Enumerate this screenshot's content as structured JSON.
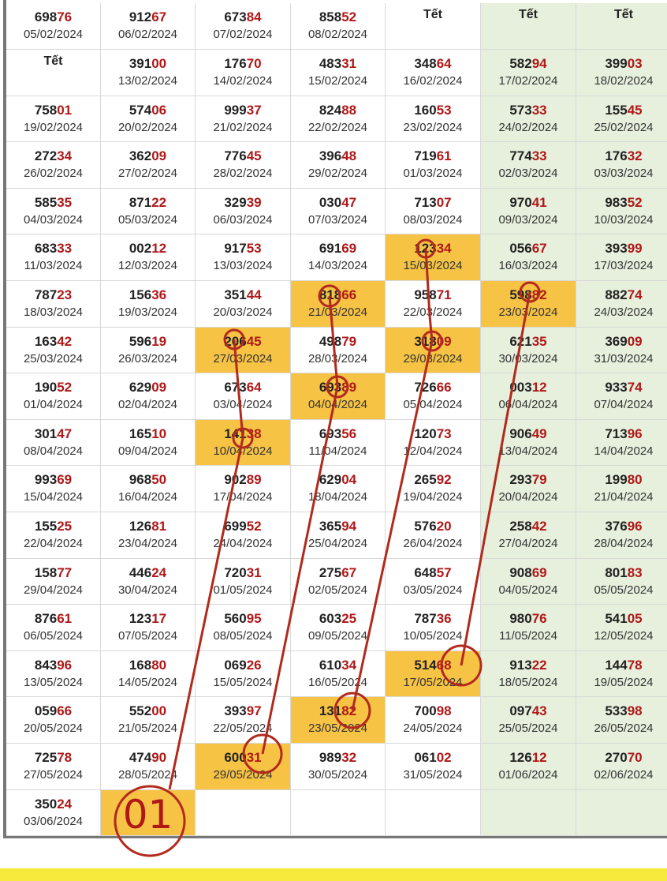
{
  "table": {
    "rows": [
      [
        {
          "number": [
            "698",
            "76"
          ],
          "date": "05/02/2024"
        },
        {
          "number": [
            "912",
            "67"
          ],
          "date": "06/02/2024"
        },
        {
          "number": [
            "673",
            "84"
          ],
          "date": "07/02/2024"
        },
        {
          "number": [
            "858",
            "52"
          ],
          "date": "08/02/2024"
        },
        {
          "holiday": "Tết"
        },
        {
          "holiday": "Tết"
        },
        {
          "holiday": "Tết"
        }
      ],
      [
        {
          "holiday": "Tết"
        },
        {
          "number": [
            "391",
            "00"
          ],
          "date": "13/02/2024"
        },
        {
          "number": [
            "176",
            "70"
          ],
          "date": "14/02/2024"
        },
        {
          "number": [
            "483",
            "31"
          ],
          "date": "15/02/2024"
        },
        {
          "number": [
            "348",
            "64"
          ],
          "date": "16/02/2024"
        },
        {
          "number": [
            "582",
            "94"
          ],
          "date": "17/02/2024"
        },
        {
          "number": [
            "399",
            "03"
          ],
          "date": "18/02/2024"
        }
      ],
      [
        {
          "number": [
            "758",
            "01"
          ],
          "date": "19/02/2024"
        },
        {
          "number": [
            "574",
            "06"
          ],
          "date": "20/02/2024"
        },
        {
          "number": [
            "999",
            "37"
          ],
          "date": "21/02/2024"
        },
        {
          "number": [
            "824",
            "88"
          ],
          "date": "22/02/2024"
        },
        {
          "number": [
            "160",
            "53"
          ],
          "date": "23/02/2024"
        },
        {
          "number": [
            "573",
            "33"
          ],
          "date": "24/02/2024"
        },
        {
          "number": [
            "155",
            "45"
          ],
          "date": "25/02/2024"
        }
      ],
      [
        {
          "number": [
            "272",
            "34"
          ],
          "date": "26/02/2024"
        },
        {
          "number": [
            "362",
            "09"
          ],
          "date": "27/02/2024"
        },
        {
          "number": [
            "776",
            "45"
          ],
          "date": "28/02/2024"
        },
        {
          "number": [
            "396",
            "48"
          ],
          "date": "29/02/2024"
        },
        {
          "number": [
            "719",
            "61"
          ],
          "date": "01/03/2024"
        },
        {
          "number": [
            "774",
            "33"
          ],
          "date": "02/03/2024"
        },
        {
          "number": [
            "176",
            "32"
          ],
          "date": "03/03/2024"
        }
      ],
      [
        {
          "number": [
            "585",
            "35"
          ],
          "date": "04/03/2024"
        },
        {
          "number": [
            "871",
            "22"
          ],
          "date": "05/03/2024"
        },
        {
          "number": [
            "329",
            "39"
          ],
          "date": "06/03/2024"
        },
        {
          "number": [
            "030",
            "47"
          ],
          "date": "07/03/2024"
        },
        {
          "number": [
            "713",
            "07"
          ],
          "date": "08/03/2024"
        },
        {
          "number": [
            "970",
            "41"
          ],
          "date": "09/03/2024"
        },
        {
          "number": [
            "983",
            "52"
          ],
          "date": "10/03/2024"
        }
      ],
      [
        {
          "number": [
            "683",
            "33"
          ],
          "date": "11/03/2024"
        },
        {
          "number": [
            "002",
            "12"
          ],
          "date": "12/03/2024"
        },
        {
          "number": [
            "917",
            "53"
          ],
          "date": "13/03/2024"
        },
        {
          "number": [
            "691",
            "69"
          ],
          "date": "14/03/2024"
        },
        {
          "number": [
            "123",
            "34"
          ],
          "date": "15/03/2024",
          "highlight": true
        },
        {
          "number": [
            "056",
            "67"
          ],
          "date": "16/03/2024"
        },
        {
          "number": [
            "393",
            "99"
          ],
          "date": "17/03/2024"
        }
      ],
      [
        {
          "number": [
            "787",
            "23"
          ],
          "date": "18/03/2024"
        },
        {
          "number": [
            "156",
            "36"
          ],
          "date": "19/03/2024"
        },
        {
          "number": [
            "351",
            "44"
          ],
          "date": "20/03/2024"
        },
        {
          "number": [
            "818",
            "66"
          ],
          "date": "21/03/2024",
          "highlight": true
        },
        {
          "number": [
            "958",
            "71"
          ],
          "date": "22/03/2024"
        },
        {
          "number": [
            "598",
            "82"
          ],
          "date": "23/03/2024",
          "highlight": true
        },
        {
          "number": [
            "882",
            "74"
          ],
          "date": "24/03/2024"
        }
      ],
      [
        {
          "number": [
            "163",
            "42"
          ],
          "date": "25/03/2024"
        },
        {
          "number": [
            "596",
            "19"
          ],
          "date": "26/03/2024"
        },
        {
          "number": [
            "206",
            "45"
          ],
          "date": "27/03/2024",
          "highlight": true
        },
        {
          "number": [
            "498",
            "79"
          ],
          "date": "28/03/2024"
        },
        {
          "number": [
            "318",
            "09"
          ],
          "date": "29/03/2024",
          "highlight": true
        },
        {
          "number": [
            "621",
            "35"
          ],
          "date": "30/03/2024"
        },
        {
          "number": [
            "369",
            "09"
          ],
          "date": "31/03/2024"
        }
      ],
      [
        {
          "number": [
            "190",
            "52"
          ],
          "date": "01/04/2024"
        },
        {
          "number": [
            "629",
            "09"
          ],
          "date": "02/04/2024"
        },
        {
          "number": [
            "673",
            "64"
          ],
          "date": "03/04/2024"
        },
        {
          "number": [
            "693",
            "89"
          ],
          "date": "04/04/2024",
          "highlight": true
        },
        {
          "number": [
            "726",
            "66"
          ],
          "date": "05/04/2024"
        },
        {
          "number": [
            "003",
            "12"
          ],
          "date": "06/04/2024"
        },
        {
          "number": [
            "933",
            "74"
          ],
          "date": "07/04/2024"
        }
      ],
      [
        {
          "number": [
            "301",
            "47"
          ],
          "date": "08/04/2024"
        },
        {
          "number": [
            "165",
            "10"
          ],
          "date": "09/04/2024"
        },
        {
          "number": [
            "141",
            "38"
          ],
          "date": "10/04/2024",
          "highlight": true
        },
        {
          "number": [
            "693",
            "56"
          ],
          "date": "11/04/2024"
        },
        {
          "number": [
            "120",
            "73"
          ],
          "date": "12/04/2024"
        },
        {
          "number": [
            "906",
            "49"
          ],
          "date": "13/04/2024"
        },
        {
          "number": [
            "713",
            "96"
          ],
          "date": "14/04/2024"
        }
      ],
      [
        {
          "number": [
            "993",
            "69"
          ],
          "date": "15/04/2024"
        },
        {
          "number": [
            "968",
            "50"
          ],
          "date": "16/04/2024"
        },
        {
          "number": [
            "902",
            "89"
          ],
          "date": "17/04/2024"
        },
        {
          "number": [
            "629",
            "04"
          ],
          "date": "18/04/2024"
        },
        {
          "number": [
            "265",
            "92"
          ],
          "date": "19/04/2024"
        },
        {
          "number": [
            "293",
            "79"
          ],
          "date": "20/04/2024"
        },
        {
          "number": [
            "199",
            "80"
          ],
          "date": "21/04/2024"
        }
      ],
      [
        {
          "number": [
            "155",
            "25"
          ],
          "date": "22/04/2024"
        },
        {
          "number": [
            "126",
            "81"
          ],
          "date": "23/04/2024"
        },
        {
          "number": [
            "699",
            "52"
          ],
          "date": "24/04/2024"
        },
        {
          "number": [
            "365",
            "94"
          ],
          "date": "25/04/2024"
        },
        {
          "number": [
            "576",
            "20"
          ],
          "date": "26/04/2024"
        },
        {
          "number": [
            "258",
            "42"
          ],
          "date": "27/04/2024"
        },
        {
          "number": [
            "376",
            "96"
          ],
          "date": "28/04/2024"
        }
      ],
      [
        {
          "number": [
            "158",
            "77"
          ],
          "date": "29/04/2024"
        },
        {
          "number": [
            "446",
            "24"
          ],
          "date": "30/04/2024"
        },
        {
          "number": [
            "720",
            "31"
          ],
          "date": "01/05/2024"
        },
        {
          "number": [
            "275",
            "67"
          ],
          "date": "02/05/2024"
        },
        {
          "number": [
            "648",
            "57"
          ],
          "date": "03/05/2024"
        },
        {
          "number": [
            "908",
            "69"
          ],
          "date": "04/05/2024"
        },
        {
          "number": [
            "801",
            "83"
          ],
          "date": "05/05/2024"
        }
      ],
      [
        {
          "number": [
            "876",
            "61"
          ],
          "date": "06/05/2024"
        },
        {
          "number": [
            "123",
            "17"
          ],
          "date": "07/05/2024"
        },
        {
          "number": [
            "560",
            "95"
          ],
          "date": "08/05/2024"
        },
        {
          "number": [
            "603",
            "25"
          ],
          "date": "09/05/2024"
        },
        {
          "number": [
            "787",
            "36"
          ],
          "date": "10/05/2024"
        },
        {
          "number": [
            "980",
            "76"
          ],
          "date": "11/05/2024"
        },
        {
          "number": [
            "541",
            "05"
          ],
          "date": "12/05/2024"
        }
      ],
      [
        {
          "number": [
            "843",
            "96"
          ],
          "date": "13/05/2024"
        },
        {
          "number": [
            "168",
            "80"
          ],
          "date": "14/05/2024"
        },
        {
          "number": [
            "069",
            "26"
          ],
          "date": "15/05/2024"
        },
        {
          "number": [
            "610",
            "34"
          ],
          "date": "16/05/2024"
        },
        {
          "number": [
            "514",
            "68"
          ],
          "date": "17/05/2024",
          "highlight": true
        },
        {
          "number": [
            "913",
            "22"
          ],
          "date": "18/05/2024"
        },
        {
          "number": [
            "144",
            "78"
          ],
          "date": "19/05/2024"
        }
      ],
      [
        {
          "number": [
            "059",
            "66"
          ],
          "date": "20/05/2024"
        },
        {
          "number": [
            "552",
            "00"
          ],
          "date": "21/05/2024"
        },
        {
          "number": [
            "393",
            "97"
          ],
          "date": "22/05/2024"
        },
        {
          "number": [
            "131",
            "82"
          ],
          "date": "23/05/2024",
          "highlight": true
        },
        {
          "number": [
            "700",
            "98"
          ],
          "date": "24/05/2024"
        },
        {
          "number": [
            "097",
            "43"
          ],
          "date": "25/05/2024"
        },
        {
          "number": [
            "533",
            "98"
          ],
          "date": "26/05/2024"
        }
      ],
      [
        {
          "number": [
            "725",
            "78"
          ],
          "date": "27/05/2024"
        },
        {
          "number": [
            "474",
            "90"
          ],
          "date": "28/05/2024"
        },
        {
          "number": [
            "600",
            "31"
          ],
          "date": "29/05/2024",
          "highlight": true
        },
        {
          "number": [
            "989",
            "32"
          ],
          "date": "30/05/2024"
        },
        {
          "number": [
            "061",
            "02"
          ],
          "date": "31/05/2024"
        },
        {
          "number": [
            "126",
            "12"
          ],
          "date": "01/06/2024"
        },
        {
          "number": [
            "270",
            "70"
          ],
          "date": "02/06/2024"
        }
      ],
      [
        {
          "number": [
            "350",
            "24"
          ],
          "date": "03/06/2024"
        },
        {
          "highlight": true,
          "annotation": "01"
        },
        {},
        {},
        {},
        {},
        {}
      ]
    ]
  }
}
